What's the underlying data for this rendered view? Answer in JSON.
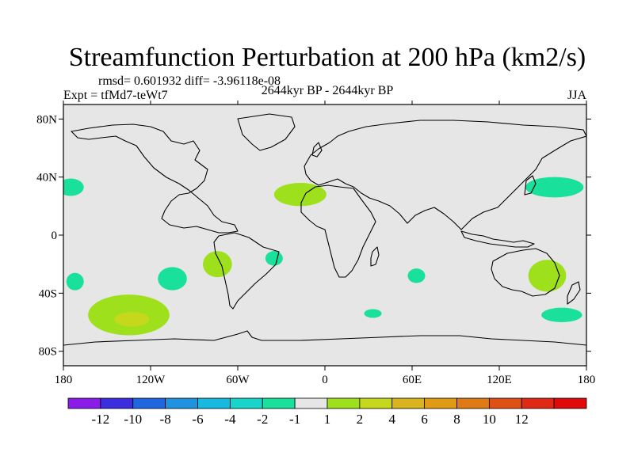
{
  "chart_data": {
    "type": "heatmap",
    "title": "Streamfunction Perturbation at 200 hPa (km2/s)",
    "stats_text": "rmsd= 0.601932 diff= -3.96118e-08",
    "left_label": "Expt = tfMd7-teWt7",
    "center_label": "2644kyr BP - 2644kyr BP",
    "right_label": "JJA",
    "x_ticks": [
      {
        "lon": -180,
        "label": "180"
      },
      {
        "lon": -120,
        "label": "120W"
      },
      {
        "lon": -60,
        "label": "60W"
      },
      {
        "lon": 0,
        "label": "0"
      },
      {
        "lon": 60,
        "label": "60E"
      },
      {
        "lon": 120,
        "label": "120E"
      },
      {
        "lon": 180,
        "label": "180"
      }
    ],
    "y_ticks": [
      {
        "lat": 80,
        "label": "80N"
      },
      {
        "lat": 40,
        "label": "40N"
      },
      {
        "lat": 0,
        "label": "0"
      },
      {
        "lat": -40,
        "label": "40S"
      },
      {
        "lat": -80,
        "label": "80S"
      }
    ],
    "xlim": [
      -180,
      180
    ],
    "ylim": [
      -90,
      90
    ],
    "colorbar": {
      "colors": [
        "#8a1be8",
        "#3a2ee0",
        "#1f66e0",
        "#1f93e0",
        "#16b9e0",
        "#17d5c8",
        "#19e09a",
        "#e6e6e6",
        "#9fe01c",
        "#c6d81c",
        "#d9b41c",
        "#e09a14",
        "#e07a14",
        "#e05014",
        "#e02814",
        "#e00a0a"
      ],
      "labels": [
        {
          "after": 1,
          "label": "-12"
        },
        {
          "after": 2,
          "label": "-10"
        },
        {
          "after": 3,
          "label": "-8"
        },
        {
          "after": 4,
          "label": "-6"
        },
        {
          "after": 5,
          "label": "-4"
        },
        {
          "after": 6,
          "label": "-2"
        },
        {
          "after": 7,
          "label": "-1"
        },
        {
          "after": 8,
          "label": "1"
        },
        {
          "after": 9,
          "label": "2"
        },
        {
          "after": 10,
          "label": "4"
        },
        {
          "after": 11,
          "label": "6"
        },
        {
          "after": 12,
          "label": "8"
        },
        {
          "after": 13,
          "label": "10"
        },
        {
          "after": 14,
          "label": "12"
        }
      ]
    },
    "background_color": "#e6e6e6",
    "anomalies": [
      {
        "name": "Pacific west of US (-1 to -2)",
        "color": "#19e09a",
        "center": [
          -175,
          33
        ],
        "radius": [
          9,
          6
        ]
      },
      {
        "name": "Northwest Pacific / Japan (-1 to -2)",
        "color": "#19e09a",
        "center": [
          158,
          33
        ],
        "radius": [
          20,
          7
        ]
      },
      {
        "name": "North Atlantic (1 to 2)",
        "color": "#9fe01c",
        "center": [
          -17,
          28
        ],
        "radius": [
          18,
          8
        ]
      },
      {
        "name": "South Pacific large (1 to 2)",
        "color": "#9fe01c",
        "center": [
          -135,
          -55
        ],
        "radius": [
          28,
          14
        ]
      },
      {
        "name": "South Pacific core (2 to 4)",
        "color": "#c6d81c",
        "center": [
          -133,
          -58
        ],
        "radius": [
          12,
          5
        ]
      },
      {
        "name": "South Pacific west (-1 to -2)",
        "color": "#19e09a",
        "center": [
          -172,
          -32
        ],
        "radius": [
          6,
          6
        ]
      },
      {
        "name": "South Pacific central (-1 to -2)",
        "color": "#19e09a",
        "center": [
          -105,
          -30
        ],
        "radius": [
          10,
          8
        ]
      },
      {
        "name": "South America (1 to 2)",
        "color": "#9fe01c",
        "center": [
          -74,
          -20
        ],
        "radius": [
          10,
          9
        ]
      },
      {
        "name": "South Atlantic (-1 to -2)",
        "color": "#19e09a",
        "center": [
          -35,
          -16
        ],
        "radius": [
          6,
          5
        ]
      },
      {
        "name": "Indian Ocean (-1 to -2)",
        "color": "#19e09a",
        "center": [
          63,
          -28
        ],
        "radius": [
          6,
          5
        ]
      },
      {
        "name": "Australia / Tasman (1 to 2)",
        "color": "#9fe01c",
        "center": [
          153,
          -28
        ],
        "radius": [
          13,
          11
        ]
      },
      {
        "name": "South of Africa (-1 to -2)",
        "color": "#19e09a",
        "center": [
          33,
          -54
        ],
        "radius": [
          6,
          3
        ]
      },
      {
        "name": "South of New Zealand (-1 to -2)",
        "color": "#19e09a",
        "center": [
          163,
          -55
        ],
        "radius": [
          14,
          5
        ]
      }
    ]
  }
}
